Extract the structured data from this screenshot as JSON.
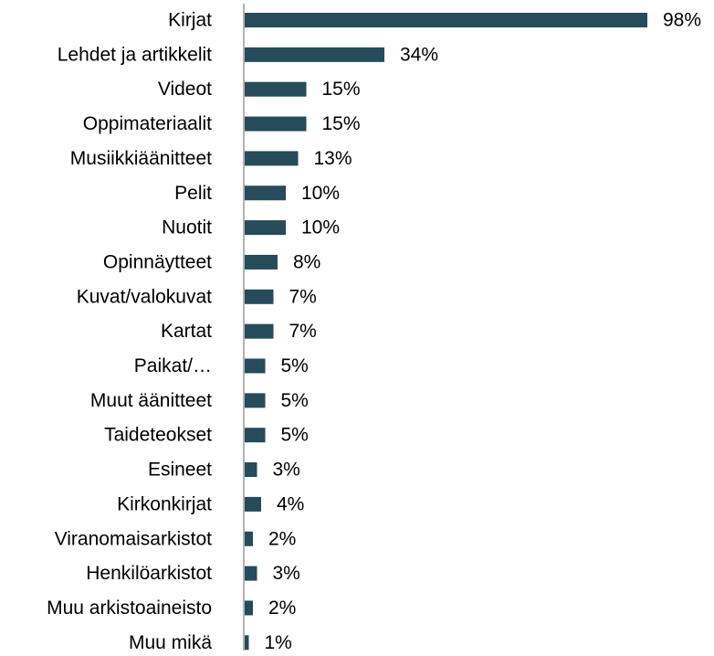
{
  "chart_data": {
    "type": "bar",
    "orientation": "horizontal",
    "categories": [
      "Kirjat",
      "Lehdet ja artikkelit",
      "Videot",
      "Oppimateriaalit",
      "Musiikkiäänitteet",
      "Pelit",
      "Nuotit",
      "Opinnäytteet",
      "Kuvat/valokuvat",
      "Kartat",
      "Paikat/…",
      "Muut äänitteet",
      "Taideteokset",
      "Esineet",
      "Kirkonkirjat",
      "Viranomaisarkistot",
      "Henkilöarkistot",
      "Muu arkistoaineisto",
      "Muu mikä"
    ],
    "values": [
      98,
      34,
      15,
      15,
      13,
      10,
      10,
      8,
      7,
      7,
      5,
      5,
      5,
      3,
      4,
      2,
      3,
      2,
      1
    ],
    "value_labels": [
      "98%",
      "34%",
      "15%",
      "15%",
      "13%",
      "10%",
      "10%",
      "8%",
      "7%",
      "7%",
      "5%",
      "5%",
      "5%",
      "3%",
      "4%",
      "2%",
      "3%",
      "2%",
      "1%"
    ],
    "color": "#264b5a"
  }
}
